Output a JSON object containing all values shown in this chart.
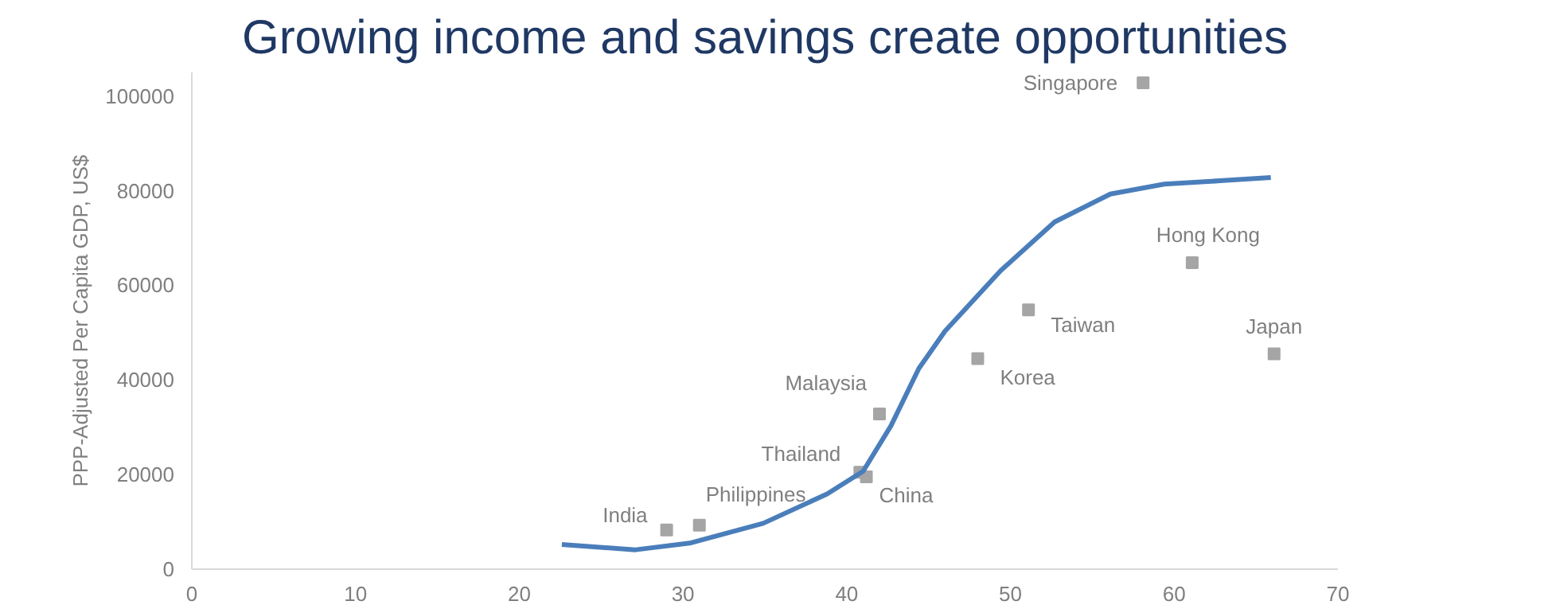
{
  "chart_data": {
    "type": "scatter",
    "title": "Growing income and savings create opportunities",
    "ylabel": "PPP-Adjusted Per Capita GDP, US$",
    "xlim": [
      0,
      70
    ],
    "ylim": [
      0,
      105000
    ],
    "xticks": [
      0,
      10,
      20,
      30,
      40,
      50,
      60,
      70
    ],
    "yticks": [
      0,
      20000,
      40000,
      60000,
      80000,
      100000
    ],
    "grid": false,
    "series": [
      {
        "marker": "square",
        "color": "#a5a5a5",
        "x": [
          29.0,
          31.0,
          40.8,
          41.2,
          42.0,
          48.0,
          51.1,
          58.1,
          61.1,
          66.1
        ],
        "values": [
          8300,
          9300,
          20500,
          19500,
          32800,
          44500,
          54800,
          102800,
          64800,
          45500
        ]
      },
      {
        "type": "line",
        "color": "#4a7ebb",
        "line_style": "solid",
        "x": [
          22.6,
          27.1,
          30.4,
          34.9,
          38.8,
          41.0,
          42.7,
          44.4,
          46.0,
          49.4,
          52.7,
          56.1,
          59.4,
          62.8,
          65.9
        ],
        "values": [
          5200,
          4100,
          5500,
          9700,
          15900,
          20700,
          30300,
          42400,
          50300,
          63100,
          73400,
          79300,
          81400,
          82100,
          82800
        ]
      }
    ],
    "annotations": [
      {
        "text": "India",
        "x": 29.0,
        "y": 8300
      },
      {
        "text": "Philippines",
        "x": 31.0,
        "y": 9300
      },
      {
        "text": "Thailand",
        "x": 40.8,
        "y": 20500
      },
      {
        "text": "China",
        "x": 41.2,
        "y": 19500
      },
      {
        "text": "Malaysia",
        "x": 42.0,
        "y": 32800
      },
      {
        "text": "Korea",
        "x": 48.0,
        "y": 44500
      },
      {
        "text": "Taiwan",
        "x": 51.1,
        "y": 54800
      },
      {
        "text": "Singapore",
        "x": 58.1,
        "y": 102800
      },
      {
        "text": "Hong Kong",
        "x": 61.1,
        "y": 64800
      },
      {
        "text": "Japan",
        "x": 66.1,
        "y": 45500
      }
    ]
  }
}
